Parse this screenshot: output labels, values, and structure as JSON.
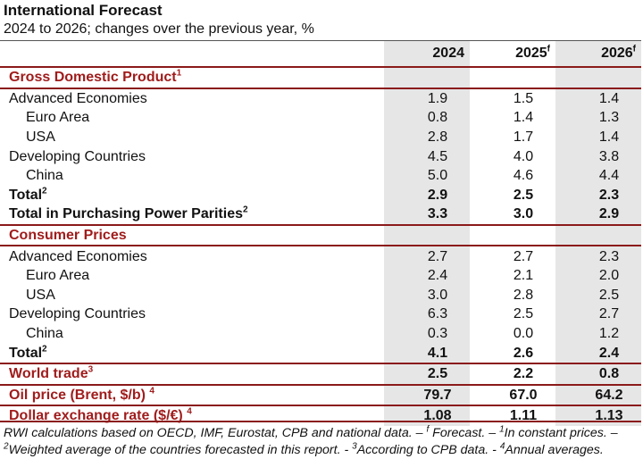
{
  "header": {
    "title": "International Forecast",
    "subtitle": "2024 to 2026; changes over the previous year, %"
  },
  "columns": [
    {
      "year": "2024",
      "mark": ""
    },
    {
      "year": "2025",
      "mark": "f"
    },
    {
      "year": "2026",
      "mark": "f"
    }
  ],
  "sections": {
    "gdp": {
      "label": "Gross Domestic Product",
      "sup": "1"
    },
    "cpi": {
      "label": "Consumer Prices",
      "sup": ""
    }
  },
  "rows": {
    "gdp_adv": {
      "label": "Advanced Economies",
      "values": [
        "1.9",
        "1.5",
        "1.4"
      ]
    },
    "gdp_euro": {
      "label": "Euro Area",
      "values": [
        "0.8",
        "1.4",
        "1.3"
      ]
    },
    "gdp_usa": {
      "label": "USA",
      "values": [
        "2.8",
        "1.7",
        "1.4"
      ]
    },
    "gdp_dev": {
      "label": "Developing Countries",
      "values": [
        "4.5",
        "4.0",
        "3.8"
      ]
    },
    "gdp_china": {
      "label": "China",
      "values": [
        "5.0",
        "4.6",
        "4.4"
      ]
    },
    "gdp_total": {
      "label": "Total",
      "sup": "2",
      "values": [
        "2.9",
        "2.5",
        "2.3"
      ]
    },
    "gdp_ppp": {
      "label": "Total in Purchasing Power Parities",
      "sup": "2",
      "values": [
        "3.3",
        "3.0",
        "2.9"
      ]
    },
    "cpi_adv": {
      "label": "Advanced Economies",
      "values": [
        "2.7",
        "2.7",
        "2.3"
      ]
    },
    "cpi_euro": {
      "label": "Euro Area",
      "values": [
        "2.4",
        "2.1",
        "2.0"
      ]
    },
    "cpi_usa": {
      "label": "USA",
      "values": [
        "3.0",
        "2.8",
        "2.5"
      ]
    },
    "cpi_dev": {
      "label": "Developing Countries",
      "values": [
        "6.3",
        "2.5",
        "2.7"
      ]
    },
    "cpi_china": {
      "label": "China",
      "values": [
        "0.3",
        "0.0",
        "1.2"
      ]
    },
    "cpi_total": {
      "label": "Total",
      "sup": "2",
      "values": [
        "4.1",
        "2.6",
        "2.4"
      ]
    },
    "world_trade": {
      "label": "World trade",
      "sup": "3",
      "values": [
        "2.5",
        "2.2",
        "0.8"
      ]
    },
    "oil": {
      "label": "Oil price (Brent, $/b) ",
      "sup": "4",
      "values": [
        "79.7",
        "67.0",
        "64.2"
      ]
    },
    "fx": {
      "label": "Dollar exchange rate ($/€) ",
      "sup": "4",
      "values": [
        "1.08",
        "1.11",
        "1.13"
      ]
    }
  },
  "footnote": {
    "line1_a": "RWI calculations based on OECD, IMF, Eurostat, CPB and national data. – ",
    "line1_sup1": "f",
    "line1_b": " Forecast. – ",
    "line1_sup2": "1",
    "line1_c": "In constant prices. –",
    "line2_sup1": "2",
    "line2_a": "Weighted average of the countries forecasted in this report. - ",
    "line2_sup2": "3",
    "line2_b": "According to CPB data. - ",
    "line2_sup3": "4",
    "line2_c": "Annual averages."
  },
  "colors": {
    "accent": "#a01c1c",
    "rule": "#8b1a1a",
    "shade": "#e6e6e6"
  }
}
